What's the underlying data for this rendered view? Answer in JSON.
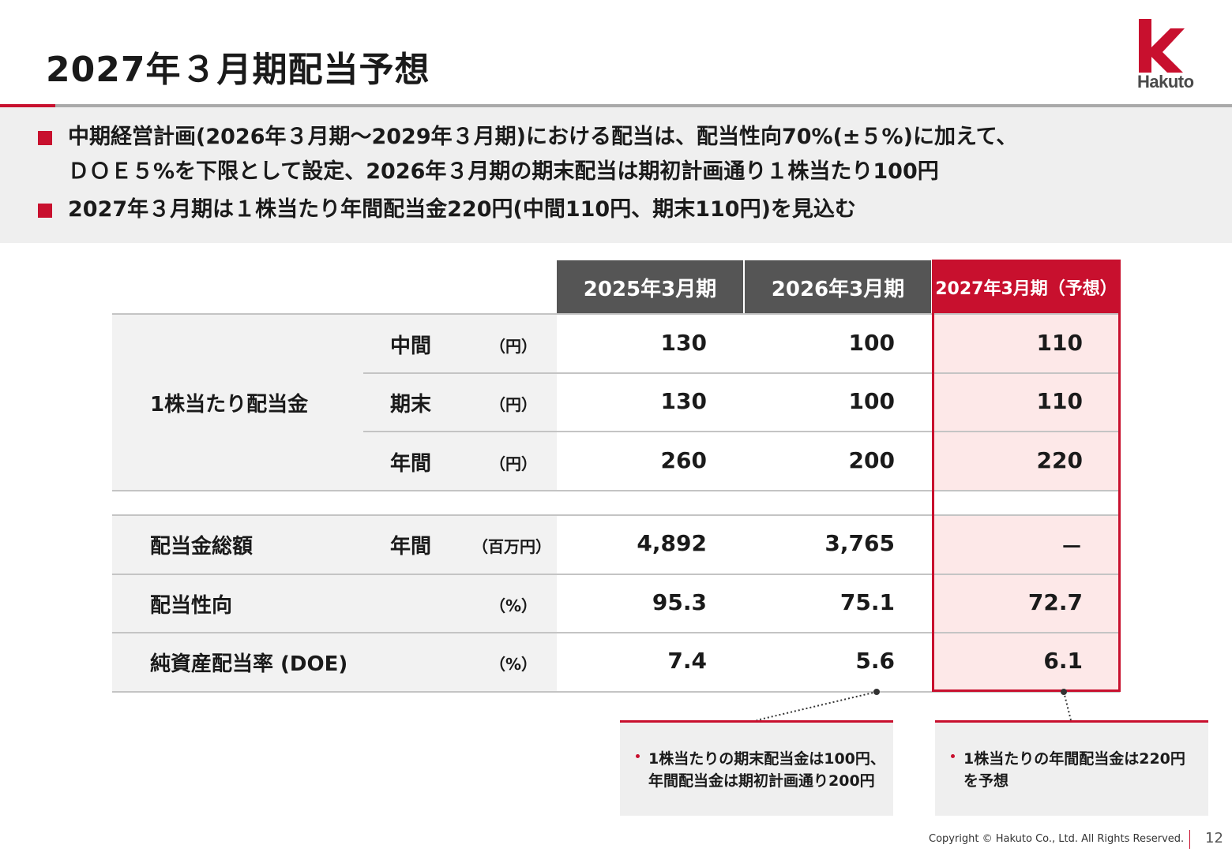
{
  "title": "2027年３月期配当予想",
  "logo": {
    "word": "Hakuto",
    "color": "#c8102e"
  },
  "summary": {
    "bullets": [
      "中期経営計画(2026年３月期～2029年３月期)における配当は、配当性向70%(±５%)に加えて、",
      "ＤＯＥ５%を下限として設定、2026年３月期の期末配当は期初計画通り１株当たり100円",
      "2027年３月期は１株当たり年間配当金220円(中間110円、期末110円)を見込む"
    ]
  },
  "table": {
    "headers": [
      "2025年3月期",
      "2026年3月期",
      "2027年3月期（予想）"
    ],
    "dividend_per_share_label": "1株当たり配当金",
    "rows": [
      {
        "label": "",
        "sub": "中間",
        "unit": "（円）",
        "values": [
          "130",
          "100",
          "110"
        ]
      },
      {
        "label": "",
        "sub": "期末",
        "unit": "（円）",
        "values": [
          "130",
          "100",
          "110"
        ]
      },
      {
        "label": "",
        "sub": "年間",
        "unit": "（円）",
        "values": [
          "260",
          "200",
          "220"
        ]
      },
      {
        "label": "配当金総額",
        "sub": "年間",
        "unit": "（百万円）",
        "values": [
          "4,892",
          "3,765",
          "－"
        ]
      },
      {
        "label": "配当性向",
        "sub": "",
        "unit": "（%）",
        "values": [
          "95.3",
          "75.1",
          "72.7"
        ]
      },
      {
        "label": "純資産配当率 (DOE)",
        "sub": "",
        "unit": "（%）",
        "values": [
          "7.4",
          "5.6",
          "6.1"
        ]
      }
    ],
    "accent_color": "#c8102e"
  },
  "notes": [
    {
      "lines": [
        "1株当たりの期末配当金は100円、",
        "年間配当金は期初計画通り200円"
      ]
    },
    {
      "lines": [
        "1株当たりの年間配当金は220円",
        "を予想"
      ]
    }
  ],
  "footer": {
    "copyright": "Copyright © Hakuto Co., Ltd. All Rights Reserved.",
    "page": "12"
  }
}
